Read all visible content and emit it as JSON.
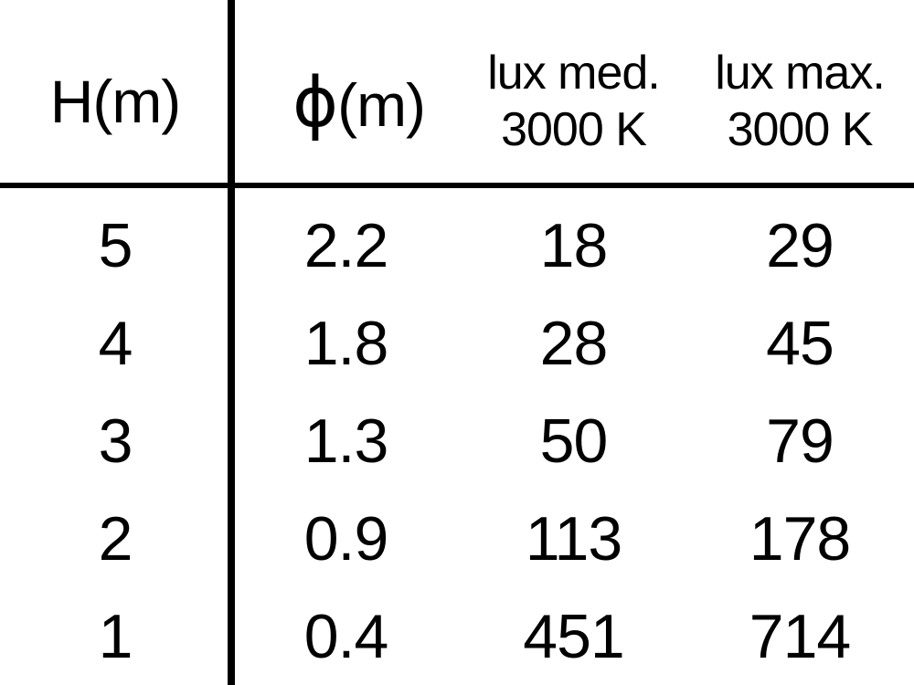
{
  "page": {
    "background_color": "#ffffff",
    "text_color": "#000000",
    "line_color": "#000000"
  },
  "chart_data": {
    "type": "table",
    "columns": [
      {
        "label": "H(m)"
      },
      {
        "label": "ϕ(m)",
        "symbol": "ϕ",
        "suffix": "(m)"
      },
      {
        "label": "lux med.",
        "sublabel": "3000 K"
      },
      {
        "label": "lux max.",
        "sublabel": "3000 K"
      }
    ],
    "rows": [
      [
        5,
        2.2,
        18,
        29
      ],
      [
        4,
        1.8,
        28,
        45
      ],
      [
        3,
        1.3,
        50,
        79
      ],
      [
        2,
        0.9,
        113,
        178
      ],
      [
        1,
        0.4,
        451,
        714
      ]
    ]
  }
}
